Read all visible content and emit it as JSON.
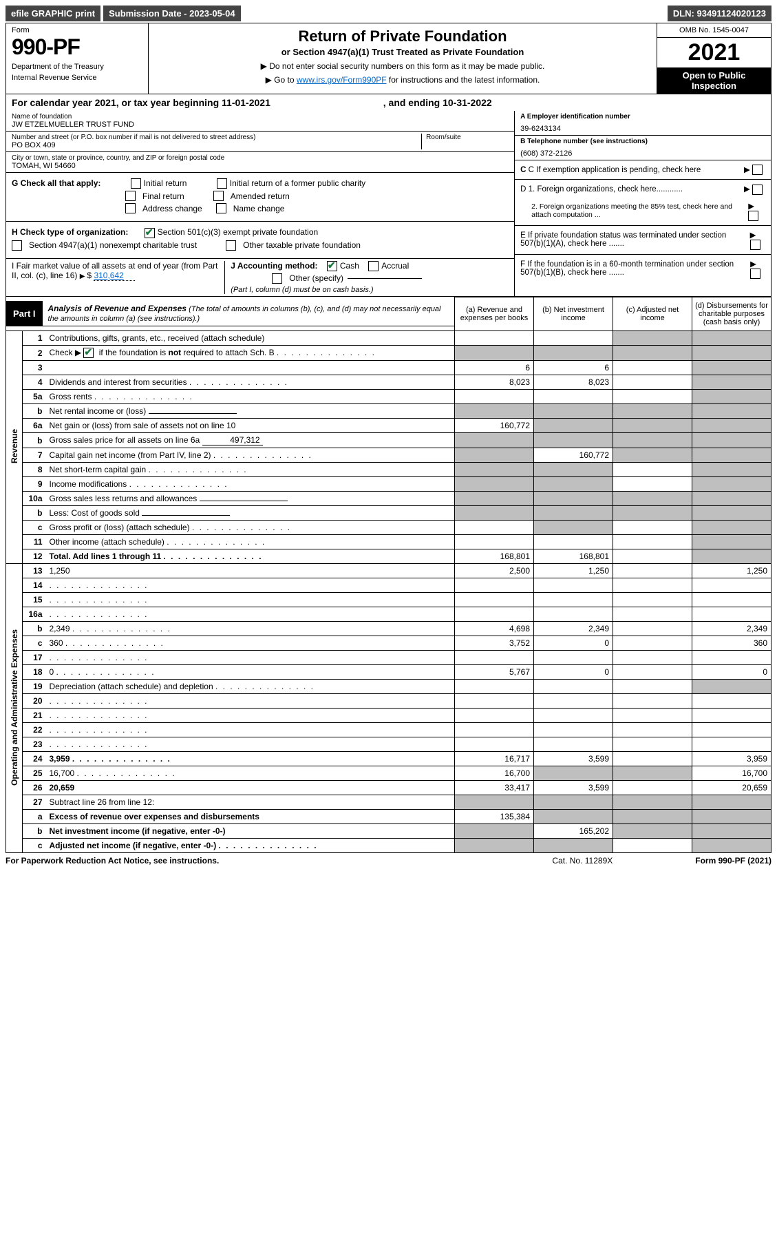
{
  "topbar": {
    "efile": "efile GRAPHIC print",
    "subdate_label": "Submission Date - 2023-05-04",
    "dln": "DLN: 93491124020123"
  },
  "header": {
    "form_label": "Form",
    "form_num": "990-PF",
    "dept": "Department of the Treasury",
    "irs": "Internal Revenue Service",
    "title": "Return of Private Foundation",
    "subtitle": "or Section 4947(a)(1) Trust Treated as Private Foundation",
    "instr1": "▶ Do not enter social security numbers on this form as it may be made public.",
    "instr2_pre": "▶ Go to ",
    "instr2_link": "www.irs.gov/Form990PF",
    "instr2_post": " for instructions and the latest information.",
    "omb": "OMB No. 1545-0047",
    "year": "2021",
    "open": "Open to Public Inspection"
  },
  "calyear": {
    "text_pre": "For calendar year 2021, or tax year beginning 11-01-2021",
    "text_mid": ", and ending 10-31-2022"
  },
  "info": {
    "name_lbl": "Name of foundation",
    "name": "JW ETZELMUELLER TRUST FUND",
    "addr_lbl": "Number and street (or P.O. box number if mail is not delivered to street address)",
    "room_lbl": "Room/suite",
    "addr": "PO BOX 409",
    "city_lbl": "City or town, state or province, country, and ZIP or foreign postal code",
    "city": "TOMAH, WI  54660",
    "ein_lbl": "A Employer identification number",
    "ein": "39-6243134",
    "tel_lbl": "B Telephone number (see instructions)",
    "tel": "(608) 372-2126",
    "c": "C If exemption application is pending, check here",
    "d1": "D 1. Foreign organizations, check here............",
    "d2": "2. Foreign organizations meeting the 85% test, check here and attach computation ...",
    "e": "E  If private foundation status was terminated under section 507(b)(1)(A), check here .......",
    "f": "F  If the foundation is in a 60-month termination under section 507(b)(1)(B), check here .......",
    "g_label": "G Check all that apply:",
    "g_opts": [
      "Initial return",
      "Initial return of a former public charity",
      "Final return",
      "Amended return",
      "Address change",
      "Name change"
    ],
    "h_label": "H Check type of organization:",
    "h_opt1": "Section 501(c)(3) exempt private foundation",
    "h_opt2": "Section 4947(a)(1) nonexempt charitable trust",
    "h_opt3": "Other taxable private foundation",
    "i_label": "I Fair market value of all assets at end of year (from Part II, col. (c), line 16)",
    "i_val": "310,642",
    "j_label": "J Accounting method:",
    "j_cash": "Cash",
    "j_accrual": "Accrual",
    "j_other": "Other (specify)",
    "j_note": "(Part I, column (d) must be on cash basis.)"
  },
  "part1": {
    "badge": "Part I",
    "title": "Analysis of Revenue and Expenses",
    "note": "(The total of amounts in columns (b), (c), and (d) may not necessarily equal the amounts in column (a) (see instructions).)",
    "cols": {
      "a": "(a) Revenue and expenses per books",
      "b": "(b)  Net investment income",
      "c": "(c)  Adjusted net income",
      "d": "(d) Disbursements for charitable purposes (cash basis only)"
    }
  },
  "side": {
    "rev": "Revenue",
    "exp": "Operating and Administrative Expenses"
  },
  "rows": [
    {
      "n": "1",
      "d": "Contributions, gifts, grants, etc., received (attach schedule)",
      "a": "",
      "b": "",
      "cGrey": true,
      "dGrey": true
    },
    {
      "n": "2",
      "d": "Check ▶ ☑ if the foundation is not required to attach Sch. B",
      "dotsInDesc": true,
      "aGrey": true,
      "bGrey": true,
      "cGrey": true,
      "dGrey": true,
      "checkGreen": true
    },
    {
      "n": "3",
      "d": "",
      "a": "6",
      "b": "6",
      "c": "",
      "dGrey": true
    },
    {
      "n": "4",
      "d": "Dividends and interest from securities",
      "dots": true,
      "a": "8,023",
      "b": "8,023",
      "c": "",
      "dGrey": true
    },
    {
      "n": "5a",
      "d": "Gross rents",
      "dots": true,
      "a": "",
      "b": "",
      "c": "",
      "dGrey": true
    },
    {
      "n": "b",
      "d": "Net rental income or (loss)",
      "underlineBox": true,
      "aGrey": true,
      "bGrey": true,
      "cGrey": true,
      "dGrey": true
    },
    {
      "n": "6a",
      "d": "Net gain or (loss) from sale of assets not on line 10",
      "a": "160,772",
      "bGrey": true,
      "cGrey": true,
      "dGrey": true
    },
    {
      "n": "b",
      "d": "Gross sales price for all assets on line 6a",
      "underlineVal": "497,312",
      "aGrey": true,
      "bGrey": true,
      "cGrey": true,
      "dGrey": true
    },
    {
      "n": "7",
      "d": "Capital gain net income (from Part IV, line 2)",
      "dots": true,
      "aGrey": true,
      "b": "160,772",
      "cGrey": true,
      "dGrey": true
    },
    {
      "n": "8",
      "d": "Net short-term capital gain",
      "dots": true,
      "aGrey": true,
      "bGrey": true,
      "c": "",
      "dGrey": true
    },
    {
      "n": "9",
      "d": "Income modifications",
      "dots": true,
      "aGrey": true,
      "bGrey": true,
      "c": "",
      "dGrey": true
    },
    {
      "n": "10a",
      "d": "Gross sales less returns and allowances",
      "underlineBox": true,
      "aGrey": true,
      "bGrey": true,
      "cGrey": true,
      "dGrey": true
    },
    {
      "n": "b",
      "d": "Less: Cost of goods sold",
      "dots": true,
      "underlineBox": true,
      "aGrey": true,
      "bGrey": true,
      "cGrey": true,
      "dGrey": true
    },
    {
      "n": "c",
      "d": "Gross profit or (loss) (attach schedule)",
      "dots": true,
      "aGrey": false,
      "a": "",
      "bGrey": true,
      "c": "",
      "dGrey": true
    },
    {
      "n": "11",
      "d": "Other income (attach schedule)",
      "dots": true,
      "a": "",
      "b": "",
      "c": "",
      "dGrey": true
    },
    {
      "n": "12",
      "d": "Total. Add lines 1 through 11",
      "dots": true,
      "bold": true,
      "a": "168,801",
      "b": "168,801",
      "c": "",
      "dGrey": true
    },
    {
      "n": "13",
      "d": "1,250",
      "a": "2,500",
      "b": "1,250",
      "c": ""
    },
    {
      "n": "14",
      "d": "",
      "dots": true,
      "a": "",
      "b": "",
      "c": ""
    },
    {
      "n": "15",
      "d": "",
      "dots": true,
      "a": "",
      "b": "",
      "c": ""
    },
    {
      "n": "16a",
      "d": "",
      "dots": true,
      "a": "",
      "b": "",
      "c": ""
    },
    {
      "n": "b",
      "d": "2,349",
      "dots": true,
      "a": "4,698",
      "b": "2,349",
      "c": ""
    },
    {
      "n": "c",
      "d": "360",
      "dots": true,
      "a": "3,752",
      "b": "0",
      "c": ""
    },
    {
      "n": "17",
      "d": "",
      "dots": true,
      "a": "",
      "b": "",
      "c": ""
    },
    {
      "n": "18",
      "d": "0",
      "dots": true,
      "a": "5,767",
      "b": "0",
      "c": ""
    },
    {
      "n": "19",
      "d": "Depreciation (attach schedule) and depletion",
      "dots": true,
      "a": "",
      "b": "",
      "c": "",
      "dGrey": true
    },
    {
      "n": "20",
      "d": "",
      "dots": true,
      "a": "",
      "b": "",
      "c": ""
    },
    {
      "n": "21",
      "d": "",
      "dots": true,
      "a": "",
      "b": "",
      "c": ""
    },
    {
      "n": "22",
      "d": "",
      "dots": true,
      "a": "",
      "b": "",
      "c": ""
    },
    {
      "n": "23",
      "d": "",
      "dots": true,
      "a": "",
      "b": "",
      "c": ""
    },
    {
      "n": "24",
      "d": "3,959",
      "dots": true,
      "bold": true,
      "a": "16,717",
      "b": "3,599",
      "c": ""
    },
    {
      "n": "25",
      "d": "16,700",
      "dots": true,
      "a": "16,700",
      "bGrey": true,
      "cGrey": true
    },
    {
      "n": "26",
      "d": "20,659",
      "bold": true,
      "a": "33,417",
      "b": "3,599",
      "c": ""
    },
    {
      "n": "27",
      "d": "Subtract line 26 from line 12:",
      "aGrey": true,
      "bGrey": true,
      "cGrey": true,
      "dGrey": true
    },
    {
      "n": "a",
      "d": "Excess of revenue over expenses and disbursements",
      "bold": true,
      "a": "135,384",
      "bGrey": true,
      "cGrey": true,
      "dGrey": true
    },
    {
      "n": "b",
      "d": "Net investment income (if negative, enter -0-)",
      "bold": true,
      "aGrey": true,
      "b": "165,202",
      "cGrey": true,
      "dGrey": true
    },
    {
      "n": "c",
      "d": "Adjusted net income (if negative, enter -0-)",
      "dots": true,
      "bold": true,
      "aGrey": true,
      "bGrey": true,
      "c": "",
      "dGrey": true
    }
  ],
  "footer": {
    "left": "For Paperwork Reduction Act Notice, see instructions.",
    "mid": "Cat. No. 11289X",
    "right": "Form 990-PF (2021)"
  }
}
